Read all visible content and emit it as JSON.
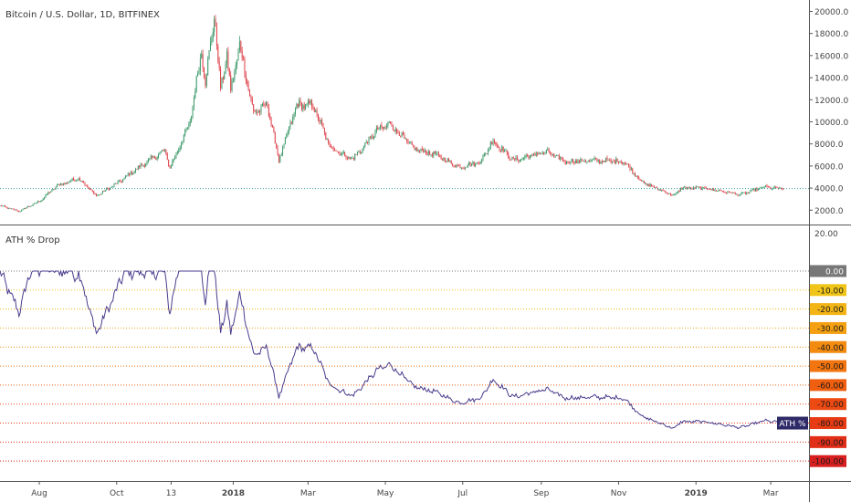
{
  "header": {
    "symbol_title": "Bitcoin / U.S. Dollar, 1D, BITFINEX"
  },
  "indicator": {
    "title": "ATH % Drop",
    "tag_label": "ATH %"
  },
  "colors": {
    "background": "#ffffff",
    "up": "#3d9a6b",
    "down": "#e0424a",
    "indicator_line": "#4a3c8c",
    "current_price_line": "#3aa3a0",
    "axis_text": "#444444",
    "separator": "#555555",
    "tag_bg": "#2e2a68"
  },
  "chart_data": [
    {
      "type": "candlestick",
      "title": "Bitcoin / U.S. Dollar, 1D, BITFINEX",
      "x_ticks": [
        "Aug",
        "Oct",
        "13",
        "2018",
        "Mar",
        "May",
        "Jul",
        "Sep",
        "Nov",
        "2019",
        "Mar"
      ],
      "y_ticks": [
        "2000.0",
        "4000.0",
        "6000.0",
        "8000.0",
        "10000.0",
        "12000.0",
        "14000.0",
        "16000.0",
        "18000.0",
        "20000.0"
      ],
      "ylim": [
        700,
        20700
      ],
      "current_price": 3950,
      "price_anchors": [
        [
          "2017-07-01",
          2400
        ],
        [
          "2017-07-16",
          1900
        ],
        [
          "2017-08-01",
          2800
        ],
        [
          "2017-08-15",
          4200
        ],
        [
          "2017-09-01",
          4900
        ],
        [
          "2017-09-15",
          3300
        ],
        [
          "2017-10-01",
          4400
        ],
        [
          "2017-10-20",
          6000
        ],
        [
          "2017-11-08",
          7400
        ],
        [
          "2017-11-12",
          5800
        ],
        [
          "2017-11-28",
          10000
        ],
        [
          "2017-12-07",
          16500
        ],
        [
          "2017-12-10",
          13500
        ],
        [
          "2017-12-17",
          19600
        ],
        [
          "2017-12-22",
          13000
        ],
        [
          "2017-12-27",
          16000
        ],
        [
          "2017-12-30",
          12800
        ],
        [
          "2018-01-06",
          17000
        ],
        [
          "2018-01-17",
          10800
        ],
        [
          "2018-01-28",
          11500
        ],
        [
          "2018-02-06",
          6500
        ],
        [
          "2018-02-20",
          11500
        ],
        [
          "2018-03-05",
          11500
        ],
        [
          "2018-03-18",
          7800
        ],
        [
          "2018-04-01",
          6800
        ],
        [
          "2018-04-06",
          6700
        ],
        [
          "2018-04-25",
          9300
        ],
        [
          "2018-05-05",
          9800
        ],
        [
          "2018-05-23",
          7600
        ],
        [
          "2018-06-10",
          7000
        ],
        [
          "2018-06-28",
          5900
        ],
        [
          "2018-07-15",
          6400
        ],
        [
          "2018-07-25",
          8300
        ],
        [
          "2018-08-10",
          6500
        ],
        [
          "2018-09-05",
          7300
        ],
        [
          "2018-09-20",
          6400
        ],
        [
          "2018-10-15",
          6500
        ],
        [
          "2018-11-05",
          6400
        ],
        [
          "2018-11-20",
          4500
        ],
        [
          "2018-12-15",
          3300
        ],
        [
          "2018-12-20",
          4000
        ],
        [
          "2019-01-08",
          4000
        ],
        [
          "2019-02-05",
          3400
        ],
        [
          "2019-02-24",
          4100
        ],
        [
          "2019-03-11",
          3900
        ]
      ]
    },
    {
      "type": "line",
      "title": "ATH % Drop",
      "y_ticks": [
        "20.00",
        "0.00",
        "-10.00",
        "-20.00",
        "-30.00",
        "-40.00",
        "-50.00",
        "-60.00",
        "-70.00",
        "-80.00",
        "-90.00",
        "-100.00"
      ],
      "ylim": [
        -110,
        24
      ],
      "current_value": -80,
      "levels": [
        {
          "value": 0,
          "label": "0.00",
          "color": "#777777"
        },
        {
          "value": -10,
          "label": "-10.00",
          "color": "#f0c419"
        },
        {
          "value": -20,
          "label": "-20.00",
          "color": "#f3b516"
        },
        {
          "value": -30,
          "label": "-30.00",
          "color": "#f4a012"
        },
        {
          "value": -40,
          "label": "-40.00",
          "color": "#f48b11"
        },
        {
          "value": -50,
          "label": "-50.00",
          "color": "#f2750f"
        },
        {
          "value": -60,
          "label": "-60.00",
          "color": "#ef5f0f"
        },
        {
          "value": -70,
          "label": "-70.00",
          "color": "#ec4a12"
        },
        {
          "value": -80,
          "label": "-80.00",
          "color": "#e73b14"
        },
        {
          "value": -90,
          "label": "-90.00",
          "color": "#e12e18"
        },
        {
          "value": -100,
          "label": "-100.00",
          "color": "#d81f1f"
        }
      ]
    }
  ]
}
